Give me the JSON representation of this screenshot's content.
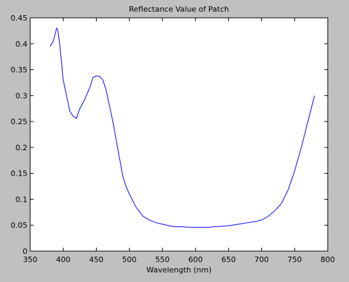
{
  "chart_data": {
    "type": "line",
    "title": "Reflectance Value of Patch",
    "xlabel": "Wavelength (nm)",
    "ylabel": "",
    "xlim": [
      350,
      800
    ],
    "ylim": [
      0,
      0.45
    ],
    "xticks": [
      350,
      400,
      450,
      500,
      550,
      600,
      650,
      700,
      750,
      800
    ],
    "xtick_labels": [
      "350",
      "400",
      "450",
      "500",
      "550",
      "600",
      "650",
      "700",
      "750",
      "800"
    ],
    "yticks": [
      0,
      0.05,
      0.1,
      0.15,
      0.2,
      0.25,
      0.3,
      0.35,
      0.4,
      0.45
    ],
    "ytick_labels": [
      "0",
      "0.05",
      "0.1",
      "0.15",
      "0.2",
      "0.25",
      "0.3",
      "0.35",
      "0.4",
      "0.45"
    ],
    "grid": false,
    "series": [
      {
        "color": "#0000ff",
        "x": [
          380,
          385,
          390,
          392,
          395,
          400,
          405,
          410,
          415,
          420,
          425,
          430,
          435,
          440,
          445,
          450,
          455,
          460,
          465,
          470,
          475,
          480,
          485,
          490,
          495,
          500,
          510,
          520,
          530,
          540,
          550,
          560,
          570,
          580,
          590,
          600,
          610,
          620,
          630,
          640,
          650,
          660,
          670,
          680,
          690,
          700,
          710,
          720,
          730,
          740,
          750,
          760,
          770,
          780
        ],
        "y": [
          0.395,
          0.405,
          0.43,
          0.425,
          0.395,
          0.33,
          0.3,
          0.27,
          0.26,
          0.256,
          0.275,
          0.286,
          0.3,
          0.315,
          0.335,
          0.338,
          0.337,
          0.33,
          0.31,
          0.28,
          0.25,
          0.215,
          0.18,
          0.145,
          0.125,
          0.11,
          0.085,
          0.068,
          0.06,
          0.055,
          0.052,
          0.049,
          0.047,
          0.047,
          0.046,
          0.046,
          0.046,
          0.046,
          0.047,
          0.048,
          0.049,
          0.051,
          0.053,
          0.055,
          0.057,
          0.06,
          0.067,
          0.078,
          0.092,
          0.118,
          0.155,
          0.2,
          0.25,
          0.3
        ]
      }
    ]
  }
}
